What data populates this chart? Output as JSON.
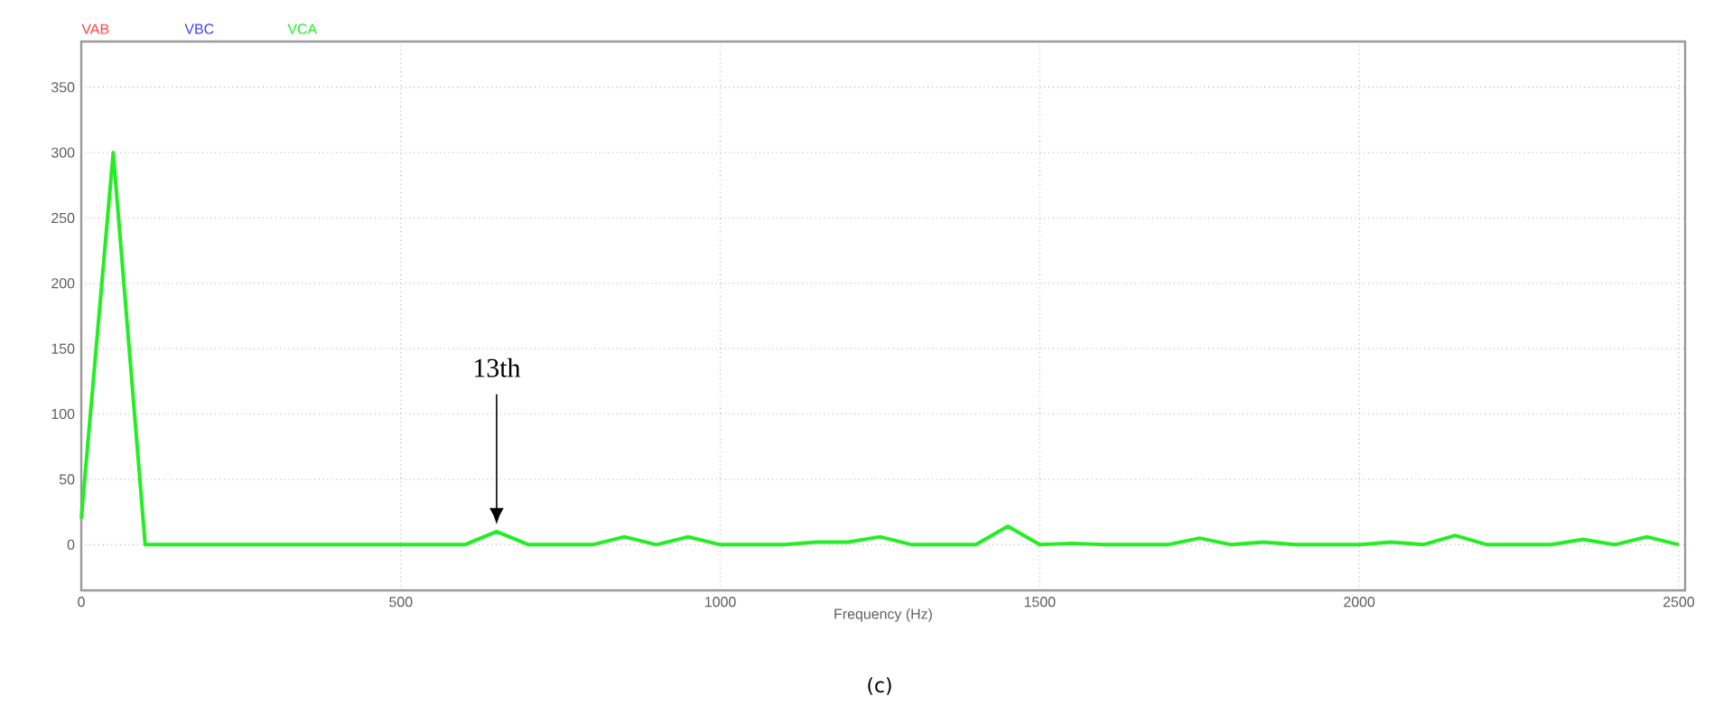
{
  "chart_data": {
    "type": "line",
    "xlabel": "Frequency (Hz)",
    "x": [
      0,
      50,
      100,
      150,
      200,
      250,
      300,
      350,
      400,
      450,
      500,
      550,
      600,
      650,
      700,
      750,
      800,
      850,
      900,
      950,
      1000,
      1050,
      1100,
      1150,
      1200,
      1250,
      1300,
      1350,
      1400,
      1450,
      1500,
      1550,
      1600,
      1650,
      1700,
      1750,
      1800,
      1850,
      1900,
      1950,
      2000,
      2050,
      2100,
      2150,
      2200,
      2250,
      2300,
      2350,
      2400,
      2450,
      2500
    ],
    "series": [
      {
        "name": "VAB",
        "color": "#ff4040",
        "values": [
          null,
          null,
          null,
          null,
          null,
          null,
          null,
          null,
          null,
          null,
          null,
          null,
          null,
          null,
          null,
          null,
          null,
          null,
          null,
          null,
          null,
          null,
          null,
          null,
          null,
          null,
          null,
          null,
          null,
          null,
          null,
          null,
          null,
          null,
          null,
          null,
          null,
          null,
          null,
          null,
          null,
          null,
          null,
          null,
          null,
          null,
          null,
          null,
          null,
          null,
          null
        ]
      },
      {
        "name": "VBC",
        "color": "#4040ff",
        "values": [
          null,
          null,
          null,
          null,
          null,
          null,
          null,
          null,
          null,
          null,
          null,
          null,
          null,
          null,
          null,
          null,
          null,
          null,
          null,
          null,
          null,
          null,
          null,
          null,
          null,
          null,
          null,
          null,
          null,
          null,
          null,
          null,
          null,
          null,
          null,
          null,
          null,
          null,
          null,
          null,
          null,
          null,
          null,
          null,
          null,
          null,
          null,
          null,
          null,
          null,
          null
        ]
      },
      {
        "name": "VCA",
        "color": "#22ee22",
        "values": [
          20,
          300,
          0,
          0,
          0,
          0,
          0,
          0,
          0,
          0,
          0,
          0,
          0,
          10,
          0,
          0,
          0,
          6,
          0,
          6,
          0,
          0,
          0,
          2,
          2,
          6,
          0,
          0,
          0,
          14,
          0,
          1,
          0,
          0,
          0,
          5,
          0,
          2,
          0,
          0,
          0,
          2,
          0,
          7,
          0,
          0,
          0,
          4,
          0,
          6,
          0
        ]
      }
    ],
    "xlim": [
      0,
      2510
    ],
    "ylim": [
      -35,
      385
    ],
    "xticks": [
      0,
      500,
      1000,
      1500,
      2000,
      2500
    ],
    "yticks": [
      0,
      50,
      100,
      150,
      200,
      250,
      300,
      350
    ],
    "grid": true,
    "legend": "top left",
    "line_style": "solid",
    "marker": "none",
    "annotations": [
      "13th",
      "(c)"
    ]
  }
}
